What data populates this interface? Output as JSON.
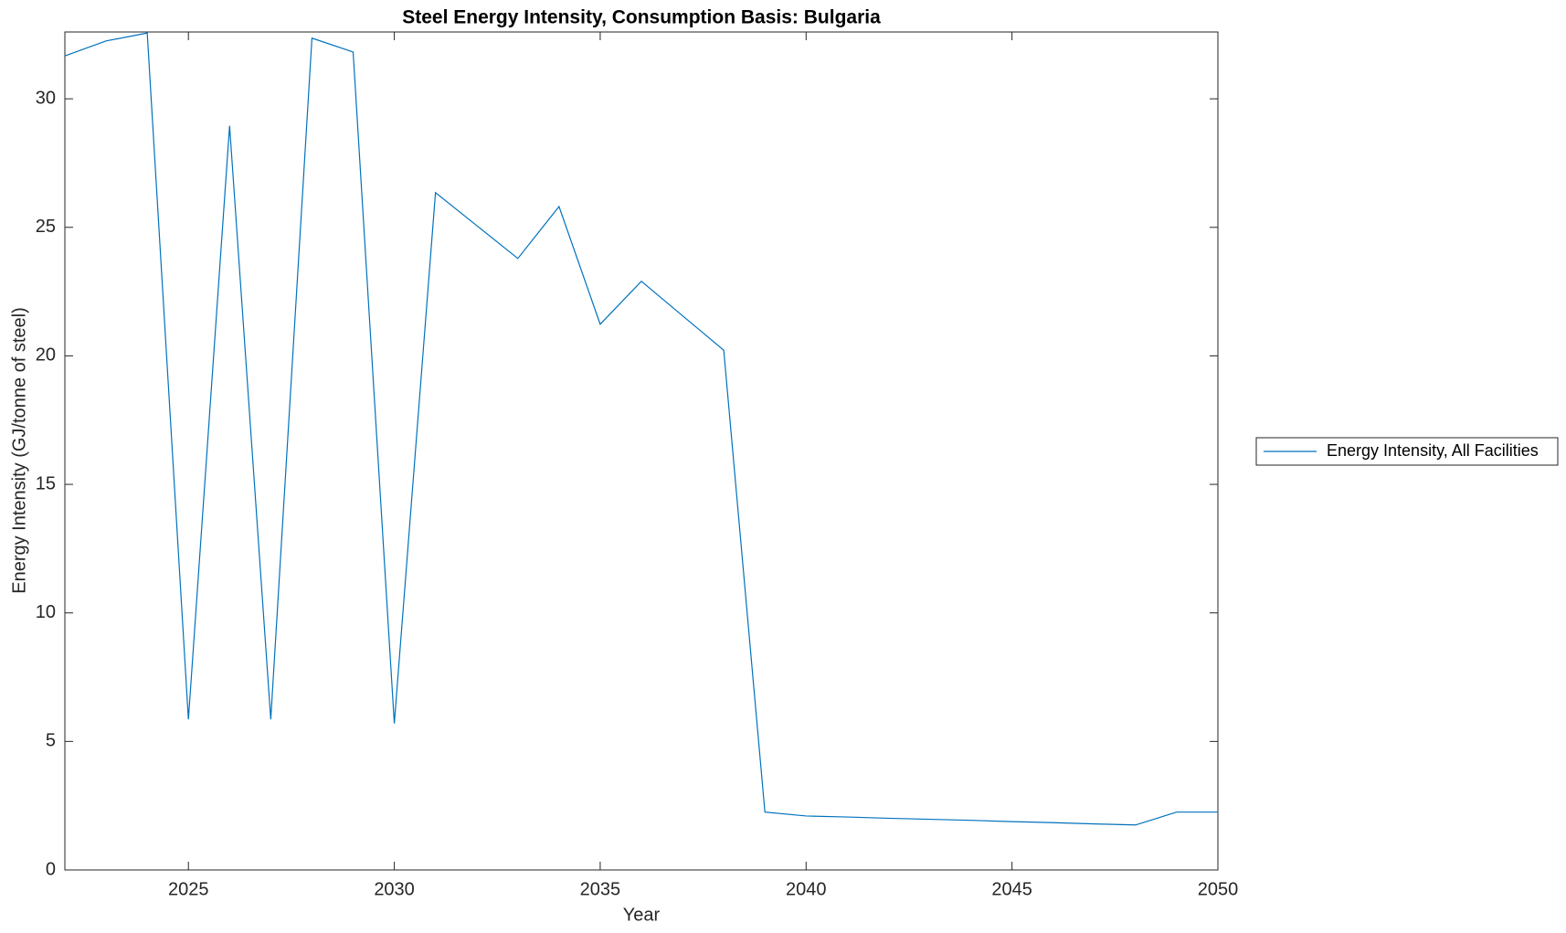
{
  "chart_data": {
    "type": "line",
    "title": "Steel Energy Intensity, Consumption Basis: Bulgaria",
    "x_label": "Year",
    "y_label": "Energy Intensity (GJ/tonne of steel)",
    "x": [
      2022,
      2023,
      2024,
      2025,
      2026,
      2027,
      2028,
      2029,
      2030,
      2031,
      2032,
      2033,
      2034,
      2035,
      2036,
      2037,
      2038,
      2039,
      2040,
      2041,
      2042,
      2043,
      2044,
      2045,
      2046,
      2047,
      2048,
      2049,
      2050
    ],
    "series": [
      {
        "name": "Energy Intensity, All Facilities",
        "color": "#0072bd",
        "values": [
          31.67,
          32.25,
          32.56,
          5.86,
          28.95,
          5.86,
          32.36,
          31.82,
          5.7,
          26.35,
          25.07,
          23.79,
          25.81,
          21.23,
          22.9,
          21.56,
          20.22,
          2.25,
          2.1,
          2.06,
          2.01,
          1.97,
          1.93,
          1.88,
          1.84,
          1.79,
          1.75,
          2.25,
          2.25
        ]
      }
    ],
    "xlim": [
      2022,
      2050
    ],
    "xticks": [
      2025,
      2030,
      2035,
      2040,
      2045,
      2050
    ],
    "ylim": [
      0,
      32.6
    ],
    "yticks": [
      0,
      5,
      10,
      15,
      20,
      25,
      30
    ],
    "grid": false,
    "legend_position": "outside-right"
  }
}
